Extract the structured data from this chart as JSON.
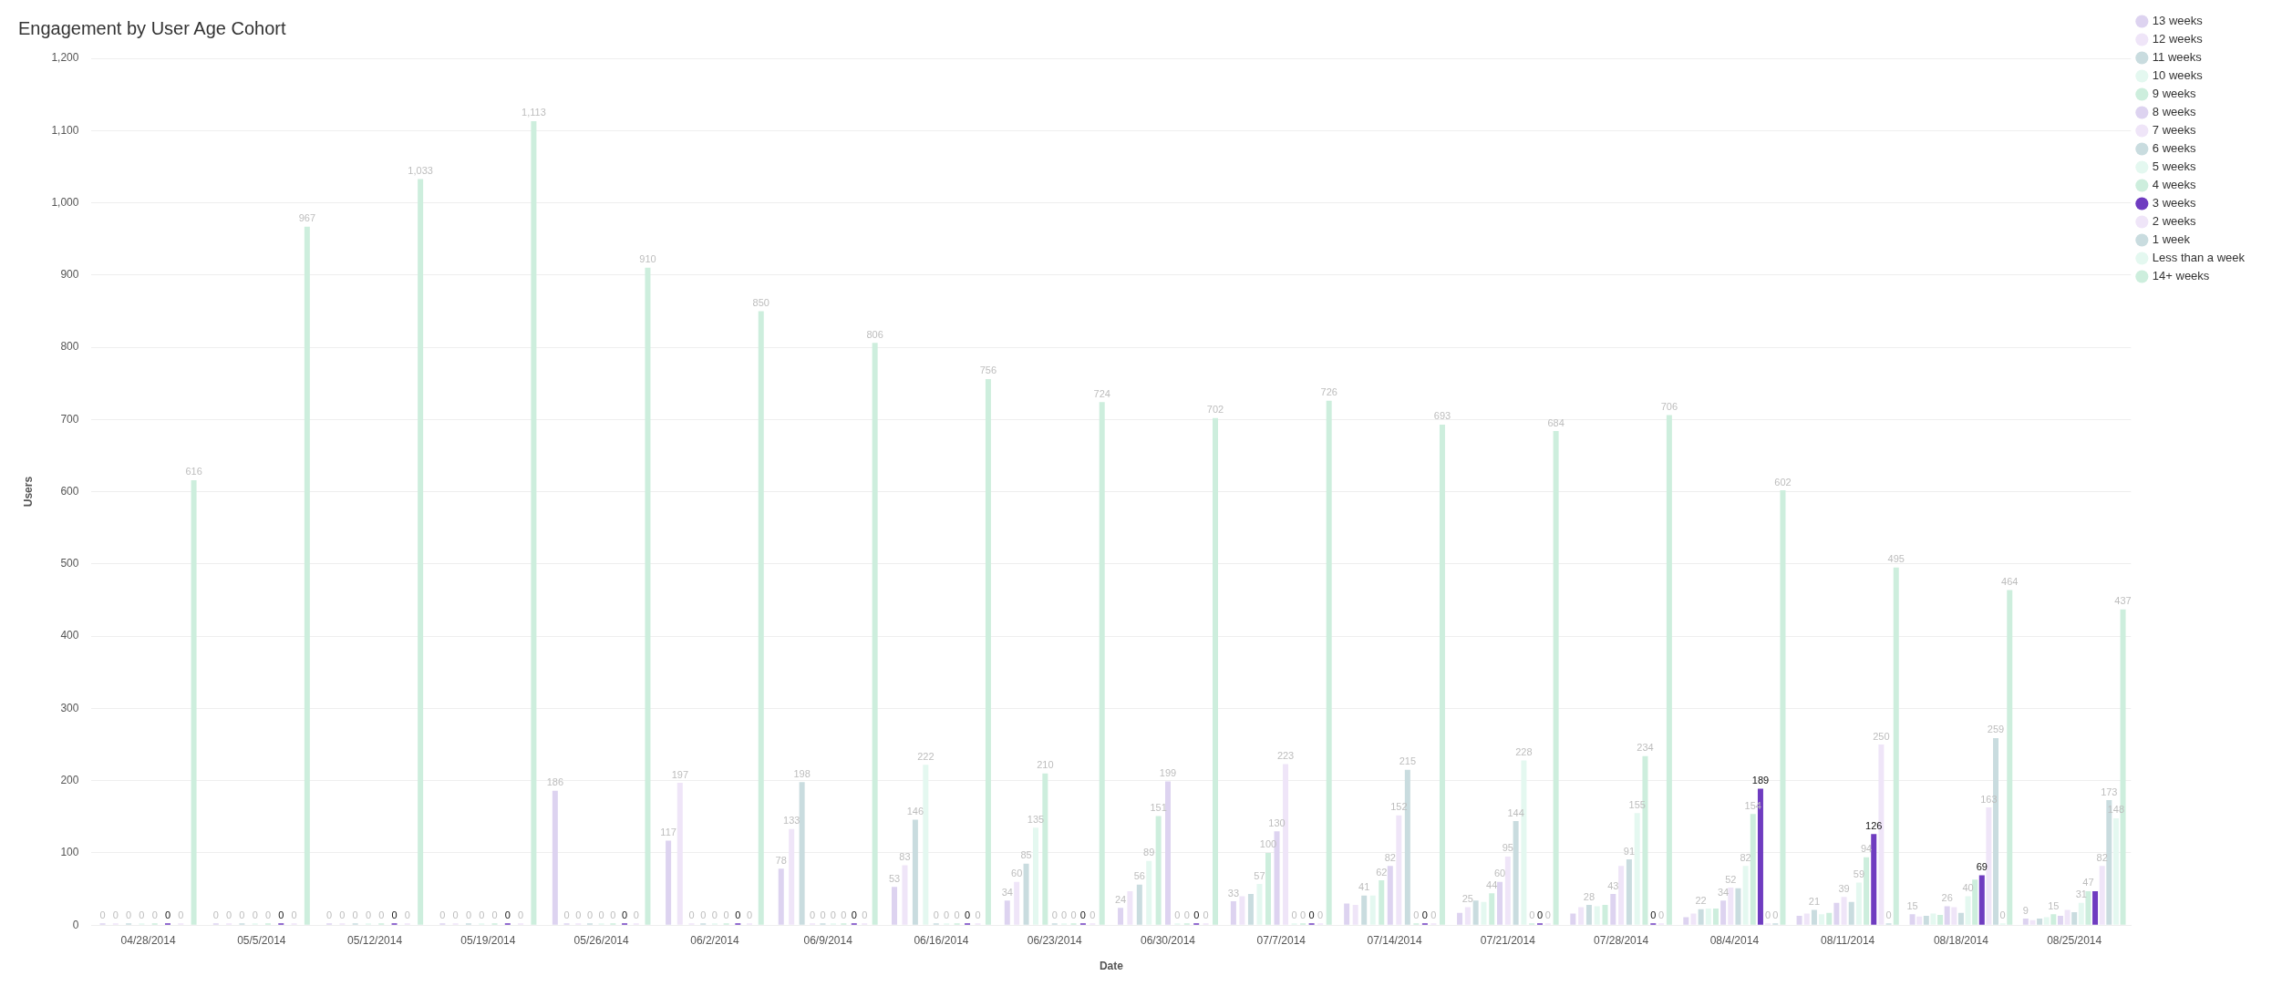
{
  "chart_data": {
    "type": "bar",
    "title": "Engagement by User Age Cohort",
    "xlabel": "Date",
    "ylabel": "Users",
    "categories": [
      "04/28/2014",
      "05/5/2014",
      "05/12/2014",
      "05/19/2014",
      "05/26/2014",
      "06/2/2014",
      "06/9/2014",
      "06/16/2014",
      "06/23/2014",
      "06/30/2014",
      "07/7/2014",
      "07/14/2014",
      "07/21/2014",
      "07/28/2014",
      "08/4/2014",
      "08/11/2014",
      "08/18/2014",
      "08/25/2014"
    ],
    "ylim": [
      0,
      1200
    ],
    "yticks": [
      0,
      100,
      200,
      300,
      400,
      500,
      600,
      700,
      800,
      900,
      {
        "value": 1000,
        "label": "1,000"
      },
      {
        "value": 1100,
        "label": "1,100"
      },
      {
        "value": 1200,
        "label": "1,200"
      }
    ],
    "grid": "y",
    "legend": "top right",
    "series": [
      {
        "name": "13 weeks",
        "color": "#ddd3f0",
        "values": [
          null,
          null,
          null,
          null,
          186,
          117,
          78,
          53,
          34,
          24,
          33,
          30,
          17,
          16,
          11,
          13,
          15,
          9
        ],
        "value_labels": [
          null,
          null,
          null,
          null,
          "186",
          "117",
          "78",
          "53",
          "34",
          "24",
          "33",
          null,
          null,
          null,
          null,
          null,
          "15",
          "9"
        ]
      },
      {
        "name": "12 weeks",
        "color": "#efe5f8",
        "values": [
          null,
          null,
          null,
          null,
          null,
          197,
          133,
          83,
          60,
          47,
          40,
          28,
          25,
          25,
          16,
          16,
          12,
          7
        ],
        "value_labels": [
          null,
          null,
          null,
          null,
          null,
          "197",
          "133",
          "83",
          "60",
          null,
          null,
          null,
          "25",
          null,
          null,
          null,
          null,
          null
        ]
      },
      {
        "name": "11 weeks",
        "color": "#c9dcdf",
        "values": [
          null,
          null,
          null,
          null,
          null,
          null,
          198,
          146,
          85,
          56,
          43,
          41,
          34,
          28,
          22,
          21,
          13,
          9
        ],
        "value_labels": [
          null,
          null,
          null,
          null,
          null,
          null,
          "198",
          "146",
          "85",
          "56",
          null,
          "41",
          null,
          "28",
          "22",
          "21",
          null,
          null
        ]
      },
      {
        "name": "10 weeks",
        "color": "#e4f8f0",
        "values": [
          null,
          null,
          null,
          null,
          null,
          null,
          null,
          222,
          135,
          89,
          57,
          41,
          32,
          26,
          23,
          15,
          16,
          11
        ],
        "value_labels": [
          null,
          null,
          null,
          null,
          null,
          null,
          null,
          "222",
          "135",
          "89",
          "57",
          null,
          null,
          null,
          null,
          null,
          null,
          null
        ]
      },
      {
        "name": "9 weeks",
        "color": "#cdeedd",
        "values": [
          null,
          null,
          null,
          null,
          null,
          null,
          null,
          null,
          210,
          151,
          100,
          62,
          44,
          28,
          23,
          17,
          14,
          15
        ],
        "value_labels": [
          null,
          null,
          null,
          null,
          null,
          null,
          null,
          null,
          "210",
          "151",
          "100",
          "62",
          "44",
          null,
          null,
          null,
          null,
          "15"
        ]
      },
      {
        "name": "8 weeks",
        "color": "#ddd3f0",
        "values": [
          0,
          0,
          0,
          0,
          0,
          null,
          null,
          null,
          null,
          199,
          130,
          82,
          60,
          43,
          34,
          31,
          26,
          13
        ],
        "value_labels": [
          "0",
          "0",
          "0",
          "0",
          "0",
          null,
          null,
          null,
          null,
          "199",
          "130",
          "82",
          "60",
          "43",
          "34",
          null,
          "26",
          null
        ]
      },
      {
        "name": "7 weeks",
        "color": "#efe5f8",
        "values": [
          0,
          0,
          0,
          0,
          0,
          0,
          0,
          null,
          null,
          null,
          223,
          152,
          95,
          82,
          52,
          39,
          25,
          21
        ],
        "value_labels": [
          "0",
          "0",
          "0",
          "0",
          "0",
          "0",
          "0",
          null,
          null,
          null,
          "223",
          "152",
          "95",
          null,
          "52",
          "39",
          null,
          null
        ]
      },
      {
        "name": "6 weeks",
        "color": "#c9dcdf",
        "values": [
          0,
          0,
          0,
          0,
          0,
          0,
          0,
          0,
          0,
          null,
          null,
          215,
          144,
          91,
          51,
          32,
          17,
          18
        ],
        "value_labels": [
          "0",
          "0",
          "0",
          "0",
          "0",
          "0",
          "0",
          "0",
          "0",
          null,
          null,
          "215",
          "144",
          "91",
          null,
          null,
          null,
          null
        ]
      },
      {
        "name": "5 weeks",
        "color": "#e4f8f0",
        "values": [
          0,
          0,
          0,
          0,
          0,
          0,
          0,
          0,
          0,
          0,
          0,
          null,
          228,
          155,
          82,
          59,
          40,
          31
        ],
        "value_labels": [
          "0",
          "0",
          "0",
          "0",
          "0",
          "0",
          "0",
          "0",
          "0",
          "0",
          "0",
          null,
          "228",
          "155",
          "82",
          "59",
          "40",
          "31"
        ]
      },
      {
        "name": "4 weeks",
        "color": "#cdeedd",
        "values": [
          0,
          0,
          0,
          0,
          0,
          0,
          0,
          0,
          0,
          0,
          0,
          0,
          0,
          234,
          154,
          94,
          63,
          47
        ],
        "value_labels": [
          "0",
          "0",
          "0",
          "0",
          "0",
          "0",
          "0",
          "0",
          "0",
          "0",
          "0",
          "0",
          "0",
          "234",
          "154",
          "94",
          null,
          "47"
        ]
      },
      {
        "name": "3 weeks",
        "color": "#6f3cc0",
        "values": [
          0,
          0,
          0,
          0,
          0,
          0,
          0,
          0,
          0,
          0,
          0,
          0,
          0,
          0,
          189,
          126,
          69,
          47
        ],
        "value_labels": [
          "0",
          "0",
          "0",
          "0",
          "0",
          "0",
          "0",
          "0",
          "0",
          "0",
          "0",
          "0",
          "0",
          "0",
          "189",
          "126",
          "69",
          null
        ]
      },
      {
        "name": "2 weeks",
        "color": "#efe5f8",
        "values": [
          0,
          0,
          0,
          0,
          0,
          0,
          0,
          0,
          0,
          0,
          0,
          0,
          0,
          0,
          0,
          250,
          163,
          82
        ],
        "value_labels": [
          "0",
          "0",
          "0",
          "0",
          "0",
          "0",
          "0",
          "0",
          "0",
          "0",
          "0",
          "0",
          "0",
          "0",
          "0",
          "250",
          "163",
          "82"
        ]
      },
      {
        "name": "1 week",
        "color": "#c9dcdf",
        "values": [
          null,
          null,
          null,
          null,
          null,
          null,
          null,
          null,
          null,
          null,
          null,
          null,
          null,
          null,
          0,
          0,
          259,
          173
        ],
        "value_labels": [
          null,
          null,
          null,
          null,
          null,
          null,
          null,
          null,
          null,
          null,
          null,
          null,
          null,
          null,
          "0",
          "0",
          "259",
          "173"
        ]
      },
      {
        "name": "Less than a week",
        "color": "#e4f8f0",
        "values": [
          null,
          null,
          null,
          null,
          null,
          null,
          null,
          null,
          null,
          null,
          null,
          null,
          null,
          null,
          null,
          null,
          0,
          148
        ],
        "value_labels": [
          null,
          null,
          null,
          null,
          null,
          null,
          null,
          null,
          null,
          null,
          null,
          null,
          null,
          null,
          null,
          null,
          "0",
          "148"
        ]
      },
      {
        "name": "14+ weeks",
        "color": "#cdeedd",
        "values": [
          616,
          967,
          1033,
          1113,
          910,
          850,
          806,
          756,
          724,
          702,
          726,
          693,
          684,
          706,
          602,
          495,
          464,
          437
        ],
        "value_labels": [
          "616",
          "967",
          "1,033",
          "1,113",
          "910",
          "850",
          "806",
          "756",
          "724",
          "702",
          "726",
          "693",
          "684",
          "706",
          "602",
          "495",
          "464",
          "437"
        ]
      }
    ]
  }
}
